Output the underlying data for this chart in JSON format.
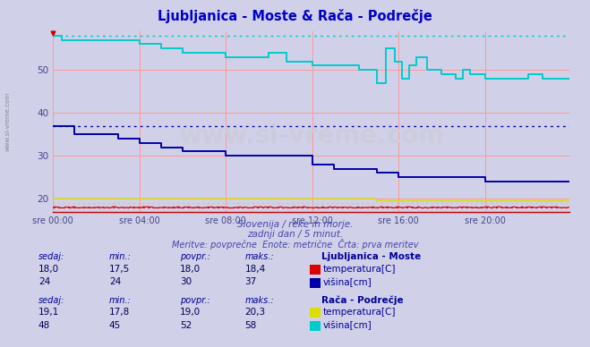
{
  "title": "Ljubljanica - Moste & Rača - Podrečje",
  "title_color": "#0000cc",
  "bg_color": "#d0d0e8",
  "plot_bg_color": "#d0d0e8",
  "grid_color": "#ff9999",
  "x_labels": [
    "sre 00:00",
    "sre 04:00",
    "sre 08:00",
    "sre 12:00",
    "sre 16:00",
    "sre 20:00"
  ],
  "x_ticks": [
    0,
    48,
    96,
    144,
    192,
    240
  ],
  "x_max": 287,
  "ylim": [
    17,
    59
  ],
  "yticks": [
    20,
    30,
    40,
    50
  ],
  "subtitle1": "Slovenija / reke in morje.",
  "subtitle2": "zadnji dan / 5 minut.",
  "subtitle3": "Meritve: povprečne  Enote: metrične  Črta: prva meritev",
  "subtitle_color": "#4444aa",
  "watermark": "www.si-vreme.com",
  "watermark_color": "#ccccdd",
  "left_label": "www.si-vreme.com",
  "station1_name": "Ljubljanica - Moste",
  "station1_temp_color": "#dd0000",
  "station1_height_color": "#0000aa",
  "station2_name": "Rača - Podrečje",
  "station2_temp_color": "#dddd00",
  "station2_height_color": "#00cccc",
  "legend_label_color": "#000099",
  "table_header_color": "#000099",
  "table_value_color": "#000055",
  "station1_sedaj": "18,0",
  "station1_min": "17,5",
  "station1_povpr": "18,0",
  "station1_maks": "18,4",
  "station1_visina_sedaj": "24",
  "station1_visina_min": "24",
  "station1_visina_povpr": "30",
  "station1_visina_maks": "37",
  "station2_sedaj": "19,1",
  "station2_min": "17,8",
  "station2_povpr": "19,0",
  "station2_maks": "20,3",
  "station2_visina_sedaj": "48",
  "station2_visina_min": "45",
  "station2_visina_povpr": "52",
  "station2_visina_maks": "58",
  "dotted_level1": 37,
  "dotted_level2": 58,
  "dotted_temp1": 18.0,
  "dotted_temp2": 19.0,
  "marker_color": "#cc0000"
}
